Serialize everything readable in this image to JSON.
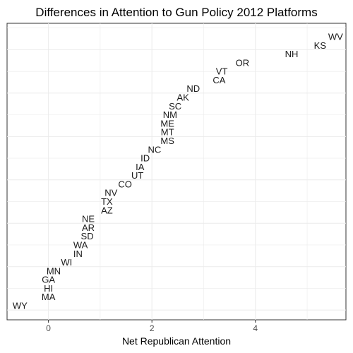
{
  "chart_data": {
    "type": "scatter",
    "title": "Differences in Attention to Gun Policy 2012 Platforms",
    "xlabel": "Net Republican  Attention",
    "ylabel": "",
    "xlim": [
      -0.8,
      5.75
    ],
    "x_ticks": [
      0,
      2,
      4
    ],
    "grid": true,
    "points": [
      {
        "label": "WY",
        "x": -0.55,
        "rank": 1
      },
      {
        "label": "MA",
        "x": 0.0,
        "rank": 2
      },
      {
        "label": "HI",
        "x": 0.0,
        "rank": 3
      },
      {
        "label": "GA",
        "x": 0.0,
        "rank": 4
      },
      {
        "label": "MN",
        "x": 0.1,
        "rank": 5
      },
      {
        "label": "WI",
        "x": 0.35,
        "rank": 6
      },
      {
        "label": "IN",
        "x": 0.57,
        "rank": 7
      },
      {
        "label": "WA",
        "x": 0.62,
        "rank": 8
      },
      {
        "label": "SD",
        "x": 0.75,
        "rank": 9
      },
      {
        "label": "AR",
        "x": 0.77,
        "rank": 10
      },
      {
        "label": "NE",
        "x": 0.77,
        "rank": 11
      },
      {
        "label": "AZ",
        "x": 1.13,
        "rank": 12
      },
      {
        "label": "TX",
        "x": 1.13,
        "rank": 13
      },
      {
        "label": "NV",
        "x": 1.21,
        "rank": 14
      },
      {
        "label": "CO",
        "x": 1.48,
        "rank": 15
      },
      {
        "label": "UT",
        "x": 1.72,
        "rank": 16
      },
      {
        "label": "IA",
        "x": 1.77,
        "rank": 17
      },
      {
        "label": "ID",
        "x": 1.87,
        "rank": 18
      },
      {
        "label": "NC",
        "x": 2.05,
        "rank": 19
      },
      {
        "label": "MS",
        "x": 2.3,
        "rank": 20
      },
      {
        "label": "MT",
        "x": 2.3,
        "rank": 21
      },
      {
        "label": "ME",
        "x": 2.3,
        "rank": 22
      },
      {
        "label": "NM",
        "x": 2.35,
        "rank": 23
      },
      {
        "label": "SC",
        "x": 2.45,
        "rank": 24
      },
      {
        "label": "AK",
        "x": 2.6,
        "rank": 25
      },
      {
        "label": "ND",
        "x": 2.8,
        "rank": 26
      },
      {
        "label": "CA",
        "x": 3.3,
        "rank": 27
      },
      {
        "label": "VT",
        "x": 3.35,
        "rank": 28
      },
      {
        "label": "OR",
        "x": 3.75,
        "rank": 29
      },
      {
        "label": "NH",
        "x": 4.7,
        "rank": 30
      },
      {
        "label": "KS",
        "x": 5.25,
        "rank": 31
      },
      {
        "label": "WV",
        "x": 5.55,
        "rank": 32
      }
    ]
  }
}
